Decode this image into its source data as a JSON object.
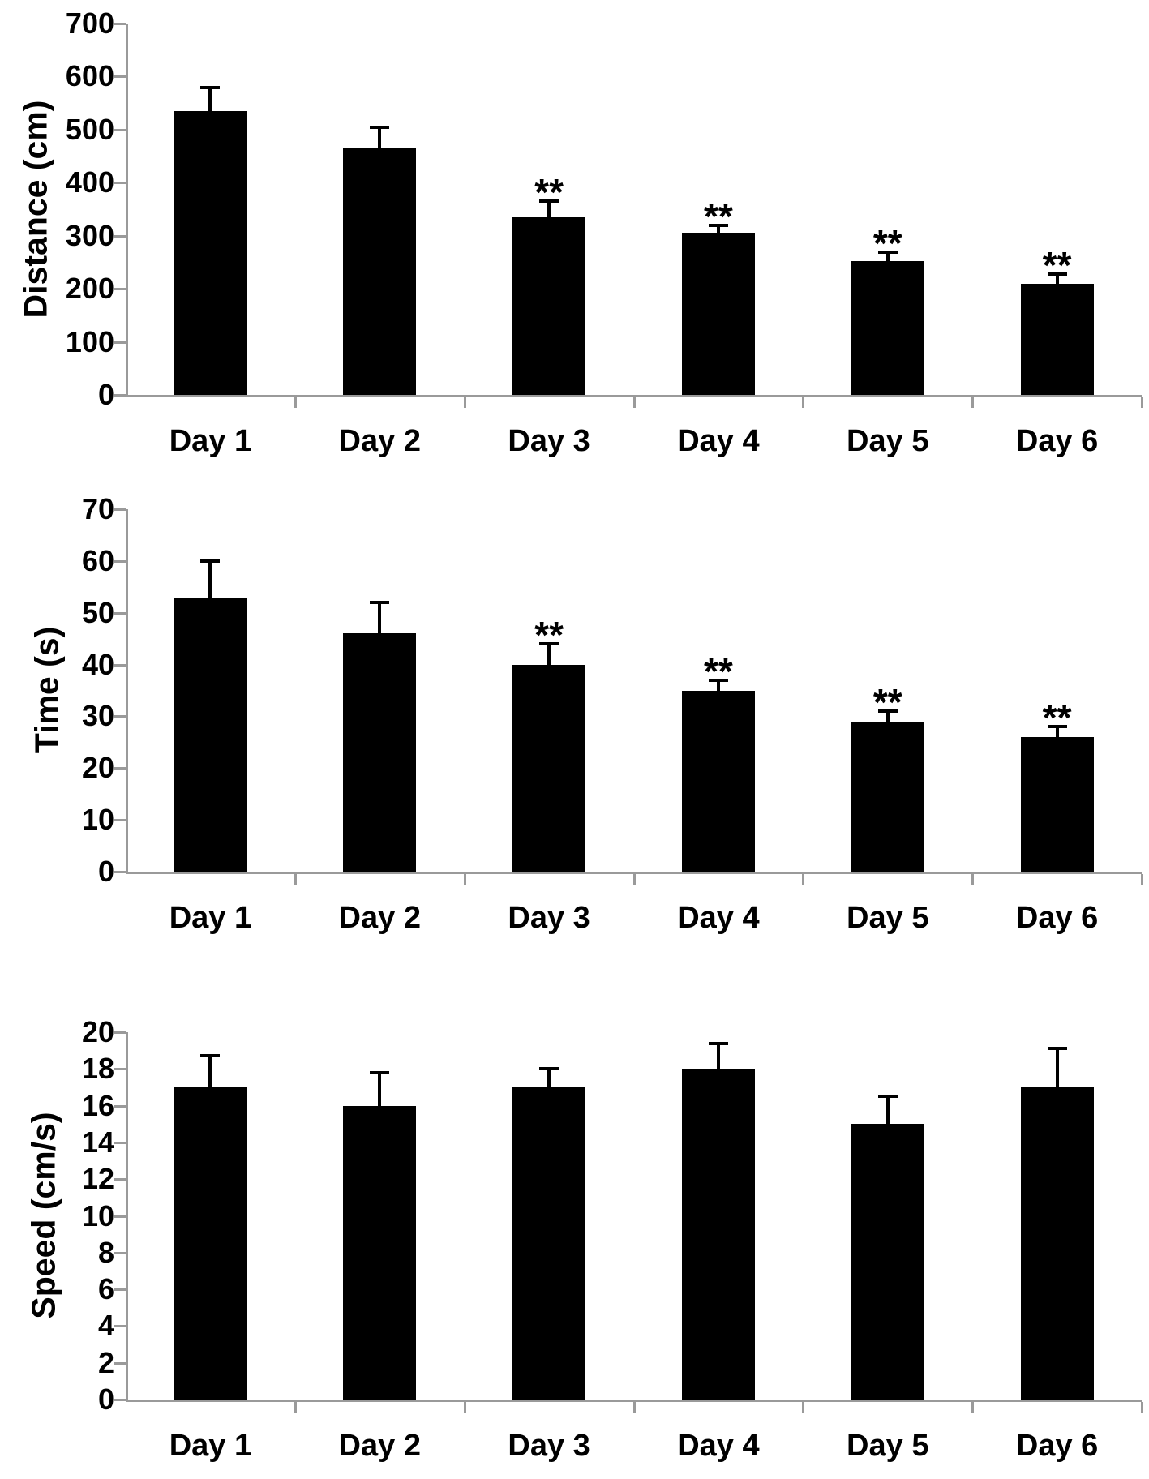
{
  "figure": {
    "background": "#ffffff"
  },
  "style": {
    "bar_color": "#000000",
    "axis_color": "#9a9a9a",
    "text_color": "#000000"
  },
  "chart_data": [
    {
      "type": "bar",
      "id": "distance",
      "ylabel": "Distance (cm)",
      "xlabel": "",
      "ylim": [
        0,
        700
      ],
      "ytick_step": 100,
      "ytick_labels": [
        "0",
        "100",
        "200",
        "300",
        "400",
        "500",
        "600",
        "700"
      ],
      "categories": [
        "Day 1",
        "Day 2",
        "Day 3",
        "Day 4",
        "Day 5",
        "Day 6"
      ],
      "values": [
        535,
        465,
        335,
        305,
        252,
        210
      ],
      "errors_plus": [
        45,
        40,
        30,
        15,
        17,
        18
      ],
      "significance": [
        "",
        "",
        "**",
        "**",
        "**",
        "**"
      ],
      "grid": false,
      "legend": false
    },
    {
      "type": "bar",
      "id": "time",
      "ylabel": "Time (s)",
      "xlabel": "",
      "ylim": [
        0,
        70
      ],
      "ytick_step": 10,
      "ytick_labels": [
        "0",
        "10",
        "20",
        "30",
        "40",
        "50",
        "60",
        "70"
      ],
      "categories": [
        "Day 1",
        "Day 2",
        "Day 3",
        "Day 4",
        "Day 5",
        "Day 6"
      ],
      "values": [
        53,
        46,
        40,
        35,
        29,
        26
      ],
      "errors_plus": [
        7,
        6,
        4,
        2,
        2,
        2
      ],
      "significance": [
        "",
        "",
        "**",
        "**",
        "**",
        "**"
      ],
      "grid": false,
      "legend": false
    },
    {
      "type": "bar",
      "id": "speed",
      "ylabel": "Speed (cm/s)",
      "xlabel": "",
      "ylim": [
        0,
        20
      ],
      "ytick_step": 2,
      "ytick_labels": [
        "0",
        "2",
        "4",
        "6",
        "8",
        "10",
        "12",
        "14",
        "16",
        "18",
        "20"
      ],
      "categories": [
        "Day 1",
        "Day 2",
        "Day 3",
        "Day 4",
        "Day 5",
        "Day 6"
      ],
      "values": [
        17,
        16,
        17,
        18,
        15,
        17
      ],
      "errors_plus": [
        1.7,
        1.8,
        1.0,
        1.4,
        1.5,
        2.1
      ],
      "significance": [
        "",
        "",
        "",
        "",
        "",
        ""
      ],
      "grid": false,
      "legend": false
    }
  ]
}
